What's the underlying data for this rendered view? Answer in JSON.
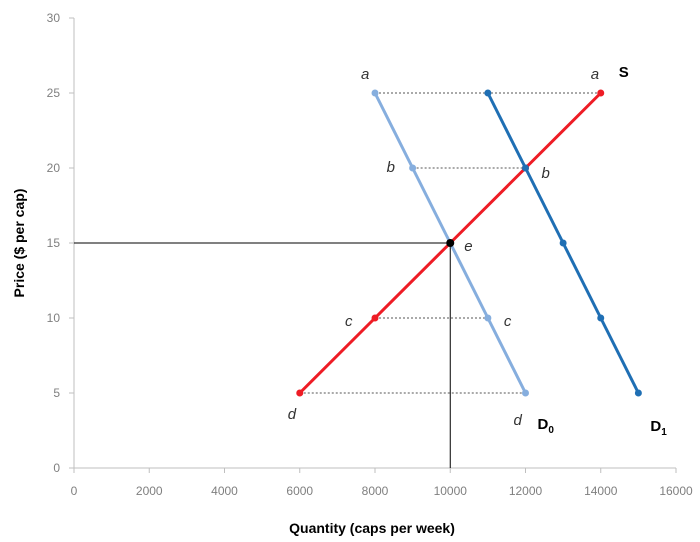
{
  "chart_data": {
    "type": "line",
    "title": "",
    "xlabel": "Quantity (caps per week)",
    "ylabel": "Price ($ per cap)",
    "xlim": [
      0,
      16000
    ],
    "ylim": [
      0,
      30
    ],
    "x_ticks": [
      0,
      2000,
      4000,
      6000,
      8000,
      10000,
      12000,
      14000,
      16000
    ],
    "y_ticks": [
      0,
      5,
      10,
      15,
      20,
      25,
      30
    ],
    "grid": false,
    "series": [
      {
        "name": "S",
        "color": "#ee1c25",
        "points": [
          [
            6000,
            5
          ],
          [
            8000,
            10
          ],
          [
            10000,
            15
          ],
          [
            12000,
            20
          ],
          [
            14000,
            25
          ]
        ]
      },
      {
        "name": "D",
        "subscript": "0",
        "color": "#86aede",
        "points": [
          [
            8000,
            25
          ],
          [
            9000,
            20
          ],
          [
            10000,
            15
          ],
          [
            11000,
            10
          ],
          [
            12000,
            5
          ]
        ]
      },
      {
        "name": "D",
        "subscript": "1",
        "color": "#1f6fb4",
        "points": [
          [
            11000,
            25
          ],
          [
            12000,
            20
          ],
          [
            13000,
            15
          ],
          [
            14000,
            10
          ],
          [
            15000,
            5
          ]
        ]
      }
    ],
    "equilibrium": {
      "x": 10000,
      "y": 15,
      "label": "e",
      "color": "#000000"
    },
    "shortage_gaps": [
      {
        "y": 25,
        "x_from": 8000,
        "x_to": 14000
      },
      {
        "y": 20,
        "x_from": 9000,
        "x_to": 12000
      },
      {
        "y": 10,
        "x_from": 8000,
        "x_to": 11000
      },
      {
        "y": 5,
        "x_from": 6000,
        "x_to": 12000
      }
    ],
    "point_labels": [
      {
        "text": "a",
        "x": 8000,
        "y": 25
      },
      {
        "text": "a",
        "x": 14000,
        "y": 25
      },
      {
        "text": "b",
        "x": 9000,
        "y": 20
      },
      {
        "text": "b",
        "x": 12000,
        "y": 20
      },
      {
        "text": "c",
        "x": 8000,
        "y": 10
      },
      {
        "text": "c",
        "x": 11000,
        "y": 10
      },
      {
        "text": "d",
        "x": 6000,
        "y": 5
      },
      {
        "text": "d",
        "x": 12000,
        "y": 5
      }
    ],
    "colors": {
      "axis": "#bfbfbf",
      "tick_text": "#7f7f7f",
      "gap_line": "#555555"
    }
  }
}
